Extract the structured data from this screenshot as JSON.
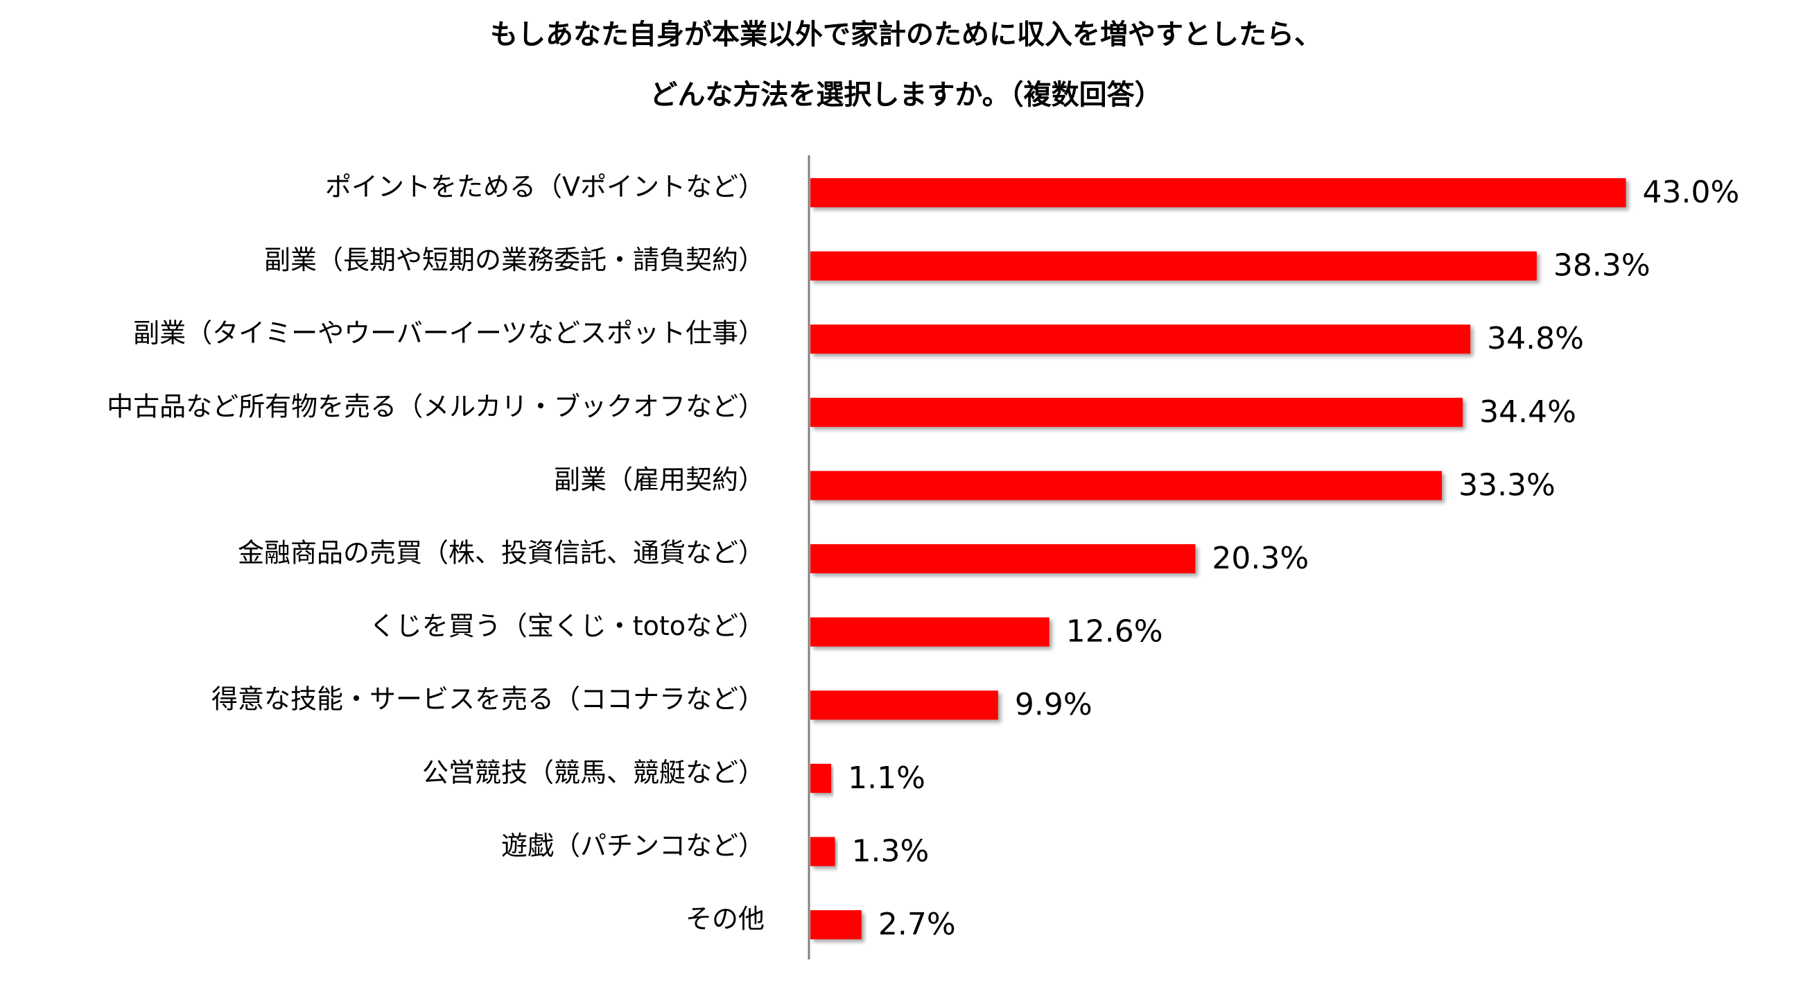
{
  "chart_data": {
    "type": "hbar",
    "title": [
      "もしあなた自身が本業以外で家計のために収入を増やすとしたら、",
      "どんな方法を選択しますか。（複数回答）"
    ],
    "categories": [
      "ポイントをためる（Vポイントなど）",
      "副業（長期や短期の業務委託・請負契約）",
      "副業（タイミーやウーバーイーツなどスポット仕事）",
      "中古品など所有物を売る（メルカリ・ブックオフなど）",
      "副業（雇用契約）",
      "金融商品の売買（株、投資信託、通貨など）",
      "くじを買う（宝くじ・totoなど）",
      "得意な技能・サービスを売る（ココナラなど）",
      "公営競技（競馬、競艇など）",
      "遊戯（パチンコなど）",
      "その他"
    ],
    "values": [
      43.0,
      38.3,
      34.8,
      34.4,
      33.3,
      20.3,
      12.6,
      9.9,
      1.1,
      1.3,
      2.7
    ],
    "value_labels": [
      "43.0%",
      "38.3%",
      "34.8%",
      "34.4%",
      "33.3%",
      "20.3%",
      "12.6%",
      "9.9%",
      "1.1%",
      "1.3%",
      "2.7%"
    ],
    "color": "#ff0000",
    "xlim": [
      0,
      50
    ]
  }
}
